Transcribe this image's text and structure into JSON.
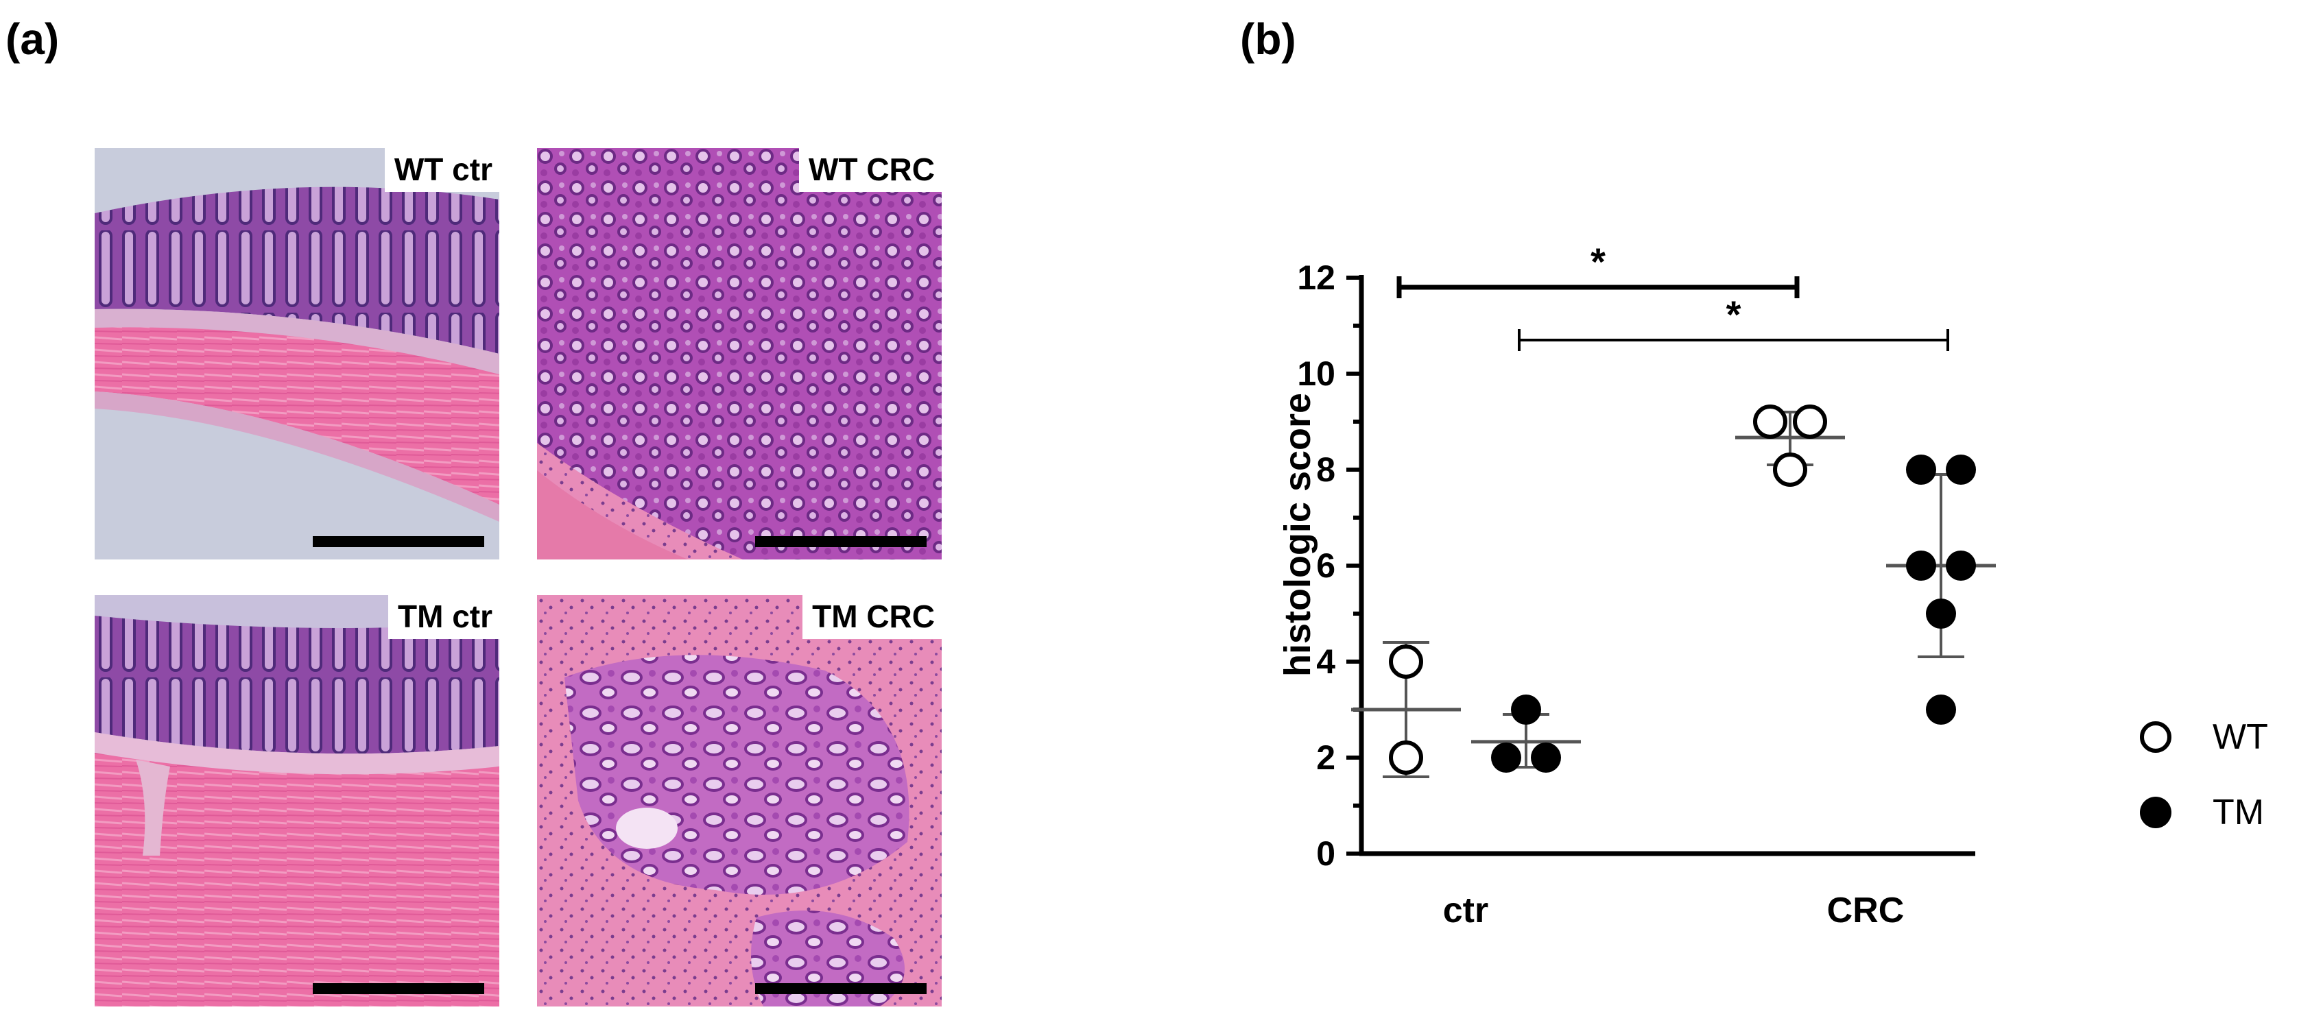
{
  "panels": {
    "a_label": "(a)",
    "b_label": "(b)"
  },
  "micrographs": [
    {
      "label": "WT ctr"
    },
    {
      "label": "WT CRC"
    },
    {
      "label": "TM ctr"
    },
    {
      "label": "TM CRC"
    }
  ],
  "chart_data": {
    "type": "scatter",
    "title": "",
    "xlabel": "",
    "ylabel": "histologic score",
    "categories": [
      "ctr",
      "CRC"
    ],
    "ylim": [
      0,
      12
    ],
    "yticks": [
      0,
      2,
      4,
      6,
      8,
      10,
      12
    ],
    "grid": false,
    "legend_position": "right",
    "series": [
      {
        "name": "WT",
        "marker": "open-circle",
        "groups": [
          {
            "category": "ctr",
            "points": [
              2,
              4
            ],
            "mean": 3,
            "sd_low": 1.6,
            "sd_high": 4.4
          },
          {
            "category": "CRC",
            "points": [
              8,
              9,
              9
            ],
            "mean": 8.67,
            "sd_low": 8.1,
            "sd_high": 9.2
          }
        ]
      },
      {
        "name": "TM",
        "marker": "filled-circle",
        "groups": [
          {
            "category": "ctr",
            "points": [
              2,
              2,
              3
            ],
            "mean": 2.33,
            "sd_low": 1.8,
            "sd_high": 2.9
          },
          {
            "category": "CRC",
            "points": [
              3,
              5,
              6,
              6,
              8,
              8
            ],
            "mean": 6,
            "sd_low": 4.1,
            "sd_high": 7.9
          }
        ]
      }
    ],
    "significance": [
      {
        "label": "*",
        "from": "WT ctr",
        "to": "WT CRC",
        "y": 11.8
      },
      {
        "label": "*",
        "from": "TM ctr",
        "to": "TM CRC",
        "y": 10.7
      }
    ],
    "colors": {
      "marker": "#000000",
      "errorbar": "#555555"
    }
  }
}
